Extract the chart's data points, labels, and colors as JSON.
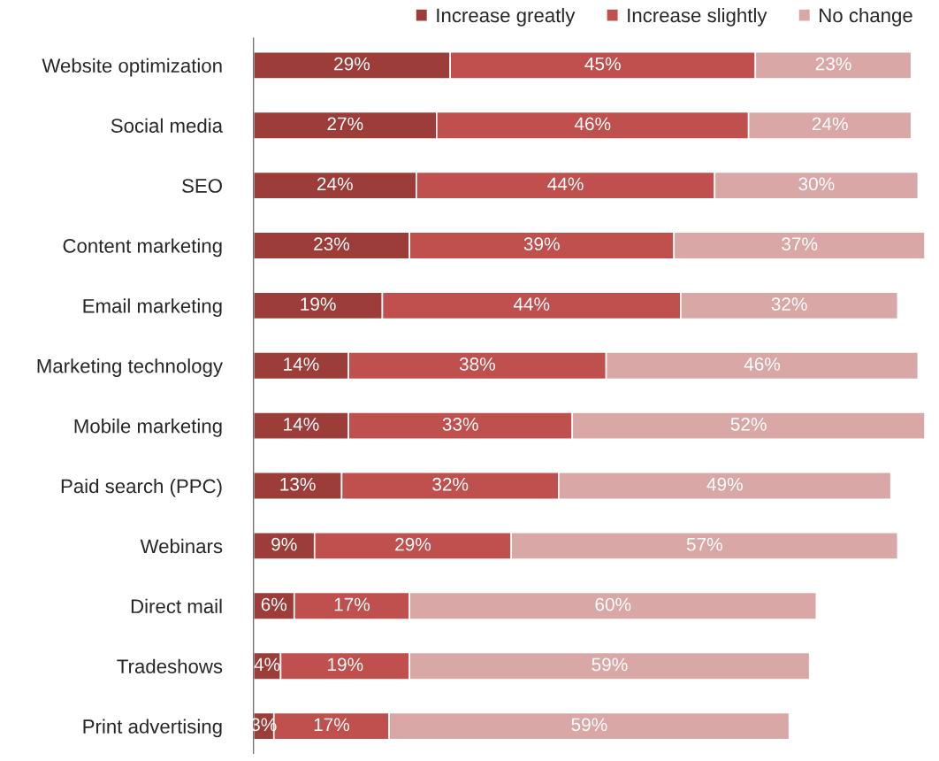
{
  "chart_data": {
    "type": "bar",
    "orientation": "horizontal",
    "stacked": true,
    "legend": "top right",
    "grid": false,
    "categories": [
      "Website optimization",
      "Social media",
      "SEO",
      "Content marketing",
      "Email marketing",
      "Marketing technology",
      "Mobile marketing",
      "Paid search (PPC)",
      "Webinars",
      "Direct mail",
      "Tradeshows",
      "Print advertising"
    ],
    "series": [
      {
        "name": "Increase greatly",
        "color": "#9c3d3a",
        "values": [
          29,
          27,
          24,
          23,
          19,
          14,
          14,
          13,
          9,
          6,
          4,
          3
        ],
        "value_labels": [
          "29%",
          "27%",
          "24%",
          "23%",
          "19%",
          "14%",
          "14%",
          "13%",
          "9%",
          "6%",
          "4%",
          "3%"
        ]
      },
      {
        "name": "Increase slightly",
        "color": "#c0504d",
        "values": [
          45,
          46,
          44,
          39,
          44,
          38,
          33,
          32,
          29,
          17,
          19,
          17
        ],
        "value_labels": [
          "45%",
          "46%",
          "44%",
          "39%",
          "44%",
          "38%",
          "33%",
          "32%",
          "29%",
          "17%",
          "19%",
          "17%"
        ]
      },
      {
        "name": "No change",
        "color": "#d9a8a6",
        "values": [
          23,
          24,
          30,
          37,
          32,
          46,
          52,
          49,
          57,
          60,
          59,
          59
        ],
        "value_labels": [
          "23%",
          "24%",
          "30%",
          "37%",
          "32%",
          "46%",
          "52%",
          "49%",
          "57%",
          "60%",
          "59%",
          "59%"
        ]
      }
    ]
  }
}
